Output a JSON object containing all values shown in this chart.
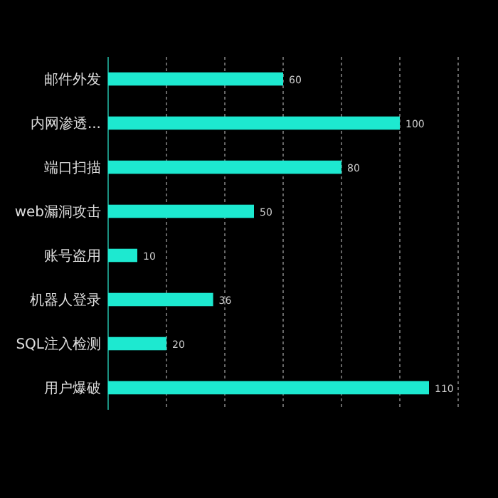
{
  "chart_data": {
    "type": "bar",
    "orientation": "horizontal",
    "categories": [
      "邮件外发",
      "内网渗透...",
      "端口扫描",
      "web漏洞攻击",
      "账号盗用",
      "机器人登录",
      "SQL注入检测",
      "用户爆破"
    ],
    "values": [
      60,
      100,
      80,
      50,
      10,
      36,
      20,
      110
    ],
    "color": "#1de9d0",
    "xlim": [
      0,
      120
    ],
    "xticks": [
      {
        "value": 20,
        "label": null
      },
      {
        "value": 40,
        "label": null
      },
      {
        "value": 60,
        "label": null
      },
      {
        "value": 80,
        "label": null
      },
      {
        "value": 100,
        "label": null
      },
      {
        "value": 120,
        "label": null
      }
    ],
    "tick_labels": "y",
    "grid": "x",
    "data_labels": true
  }
}
